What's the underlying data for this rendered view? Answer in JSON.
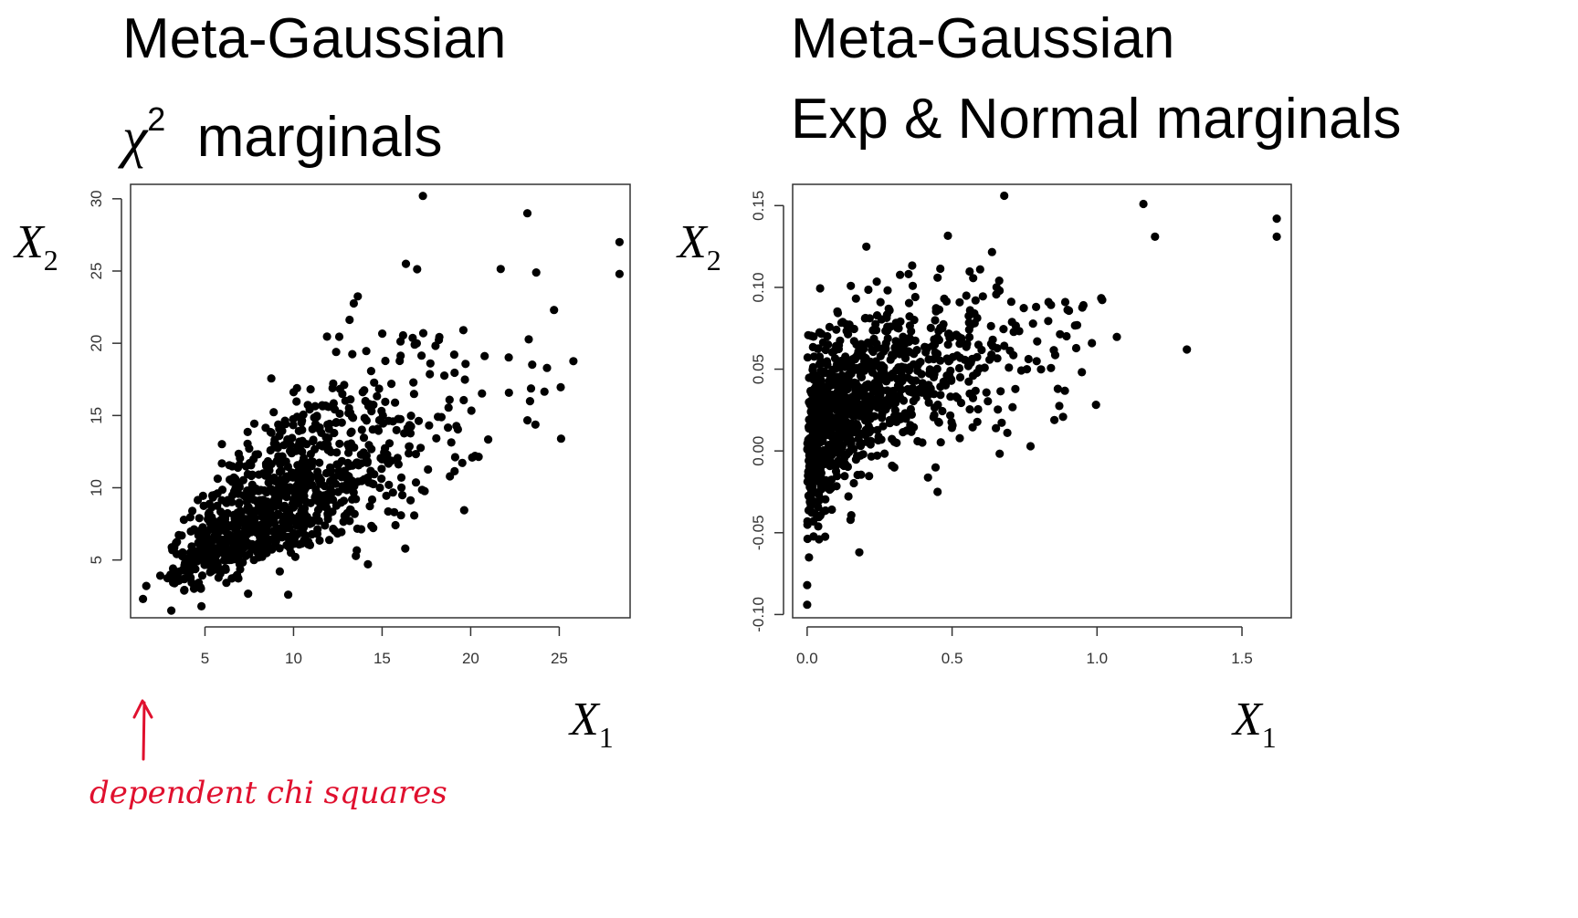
{
  "titles": {
    "left_line1": "Meta-Gaussian",
    "left_chi": "χ",
    "left_sup": "2",
    "left_line2": "marginals",
    "right_line1": "Meta-Gaussian",
    "right_line2": "Exp & Normal marginals"
  },
  "annotation": {
    "text": "dependent chi squares",
    "color": "#e0102e"
  },
  "chart_data": [
    {
      "type": "scatter",
      "title": "",
      "xlabel": "X1",
      "ylabel": "X2",
      "xlim": [
        0.8,
        29
      ],
      "ylim": [
        1,
        31
      ],
      "xticks": [
        5,
        10,
        15,
        20,
        25
      ],
      "yticks": [
        5,
        10,
        15,
        20,
        25,
        30
      ],
      "grid": false,
      "point_color": "#000000",
      "points_generated": {
        "n": 1000,
        "description": "positively correlated chi-square cloud, mass around (8,8)"
      },
      "outliers": [
        [
          17.3,
          30.2
        ],
        [
          23.2,
          29
        ],
        [
          28.4,
          27
        ],
        [
          28.4,
          24.8
        ],
        [
          23.7,
          24.9
        ],
        [
          25.1,
          13.4
        ],
        [
          14.2,
          4.7
        ],
        [
          9.7,
          2.6
        ],
        [
          1.5,
          2.3
        ],
        [
          3.1,
          1.5
        ]
      ]
    },
    {
      "type": "scatter",
      "title": "",
      "xlabel": "X1",
      "ylabel": "X2",
      "xlim": [
        -0.05,
        1.67
      ],
      "ylim": [
        -0.102,
        0.163
      ],
      "xticks": [
        0.0,
        0.5,
        1.0,
        1.5
      ],
      "yticks": [
        -0.1,
        -0.05,
        0.0,
        0.05,
        0.1,
        0.15
      ],
      "grid": false,
      "point_color": "#000000",
      "points_generated": {
        "n": 1000,
        "description": "exponential x vs normal y, dense near x=0, concave upward trend"
      },
      "outliers": [
        [
          0.68,
          0.156
        ],
        [
          1.16,
          0.151
        ],
        [
          1.62,
          0.142
        ],
        [
          1.62,
          0.131
        ],
        [
          1.2,
          0.131
        ],
        [
          1.31,
          0.062
        ],
        [
          0.0,
          -0.094
        ],
        [
          0.0,
          -0.082
        ],
        [
          0.18,
          -0.062
        ],
        [
          0.45,
          -0.025
        ]
      ]
    }
  ]
}
